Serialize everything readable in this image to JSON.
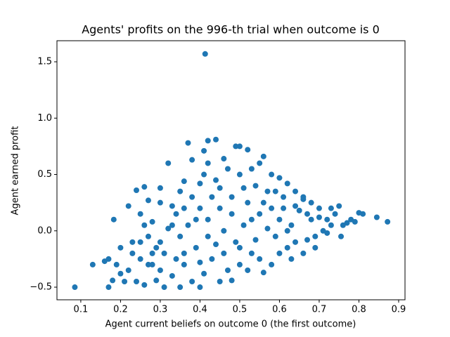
{
  "chart_data": {
    "type": "scatter",
    "title": "Agents' profits on the 996-th trial when outcome is 0",
    "x_label": "Agent current beliefs on outcome 0 (the first outcome)",
    "y_label": "Agent earned profit",
    "color": "#1f77b4",
    "xlim": [
      0.04,
      0.916
    ],
    "ylim": [
      -0.612,
      1.687
    ],
    "xticks": [
      0.1,
      0.2,
      0.3,
      0.4,
      0.5,
      0.6,
      0.7,
      0.8,
      0.9
    ],
    "yticks": [
      {
        "value": -0.5,
        "label": "−0.5"
      },
      {
        "value": 0,
        "label": "0.0"
      },
      0.5,
      {
        "value": 1,
        "label": "1.0"
      },
      1.5
    ],
    "x": [
      0.085,
      0.413,
      0.183,
      0.872,
      0.845,
      0.81,
      0.8,
      0.78,
      0.76,
      0.755,
      0.72,
      0.7,
      0.73,
      0.75,
      0.77,
      0.68,
      0.66,
      0.64,
      0.62,
      0.6,
      0.58,
      0.56,
      0.55,
      0.53,
      0.52,
      0.5,
      0.49,
      0.46,
      0.44,
      0.42,
      0.41,
      0.42,
      0.38,
      0.37,
      0.32,
      0.36,
      0.35,
      0.3,
      0.26,
      0.24,
      0.22,
      0.25,
      0.27,
      0.28,
      0.3,
      0.33,
      0.34,
      0.38,
      0.4,
      0.44,
      0.47,
      0.5,
      0.54,
      0.57,
      0.61,
      0.65,
      0.68,
      0.63,
      0.6,
      0.58,
      0.55,
      0.52,
      0.48,
      0.45,
      0.42,
      0.4,
      0.37,
      0.35,
      0.32,
      0.3,
      0.27,
      0.25,
      0.23,
      0.2,
      0.19,
      0.2,
      0.18,
      0.17,
      0.16,
      0.13,
      0.17,
      0.22,
      0.24,
      0.26,
      0.28,
      0.29,
      0.31,
      0.33,
      0.35,
      0.36,
      0.38,
      0.4,
      0.41,
      0.43,
      0.45,
      0.47,
      0.48,
      0.5,
      0.52,
      0.53,
      0.55,
      0.56,
      0.58,
      0.6,
      0.62,
      0.64,
      0.66,
      0.67,
      0.69,
      0.71,
      0.73,
      0.62,
      0.59,
      0.57,
      0.54,
      0.51,
      0.49,
      0.46,
      0.44,
      0.42,
      0.39,
      0.36,
      0.34,
      0.31,
      0.29,
      0.27,
      0.25,
      0.23,
      0.21,
      0.3,
      0.4,
      0.46,
      0.5,
      0.53,
      0.56,
      0.59,
      0.61,
      0.64,
      0.67,
      0.7,
      0.72,
      0.74,
      0.48,
      0.43,
      0.39,
      0.33,
      0.28,
      0.26,
      0.45,
      0.51,
      0.41,
      0.36,
      0.63,
      0.66,
      0.79,
      0.69
    ],
    "y": [
      -0.5,
      1.57,
      0.1,
      0.08,
      0.12,
      0.15,
      0.16,
      0.1,
      0.05,
      -0.05,
      -0.02,
      0.12,
      0.2,
      0.22,
      0.07,
      0.25,
      0.3,
      0.35,
      0.42,
      0.47,
      0.5,
      0.66,
      0.6,
      0.55,
      0.72,
      0.75,
      0.75,
      0.64,
      0.81,
      0.8,
      0.71,
      0.6,
      0.63,
      0.78,
      0.6,
      0.44,
      0.35,
      0.38,
      0.39,
      0.36,
      0.22,
      0.15,
      0.27,
      0.08,
      0.25,
      0.22,
      0.15,
      0.3,
      0.42,
      0.45,
      0.55,
      0.5,
      0.4,
      0.35,
      0.3,
      0.18,
      0.1,
      0.05,
      0.1,
      0.2,
      0.15,
      0.25,
      0.3,
      0.2,
      0.1,
      0.2,
      0.05,
      -0.05,
      0.02,
      -0.1,
      -0.05,
      -0.1,
      -0.2,
      -0.15,
      -0.3,
      -0.38,
      -0.44,
      -0.25,
      -0.27,
      -0.3,
      -0.5,
      -0.35,
      -0.45,
      -0.48,
      -0.3,
      -0.44,
      -0.5,
      -0.4,
      -0.5,
      -0.3,
      -0.45,
      -0.5,
      -0.38,
      -0.25,
      -0.45,
      -0.35,
      -0.44,
      -0.3,
      -0.35,
      -0.2,
      -0.25,
      -0.37,
      -0.3,
      -0.2,
      -0.15,
      -0.1,
      -0.2,
      -0.08,
      -0.05,
      0,
      0.05,
      0,
      -0.05,
      0.02,
      -0.08,
      0.05,
      -0.1,
      0,
      -0.12,
      -0.05,
      -0.15,
      -0.2,
      -0.25,
      -0.2,
      -0.15,
      -0.3,
      -0.25,
      -0.1,
      -0.45,
      -0.35,
      -0.28,
      -0.2,
      -0.15,
      0.1,
      0.25,
      0.35,
      0.2,
      0.22,
      0.15,
      0.2,
      0.1,
      0.15,
      0.15,
      0.3,
      0.1,
      0.05,
      -0.2,
      0.05,
      0.38,
      0.38,
      0.5,
      0.2,
      -0.25,
      0.28,
      0.08,
      -0.15
    ]
  }
}
